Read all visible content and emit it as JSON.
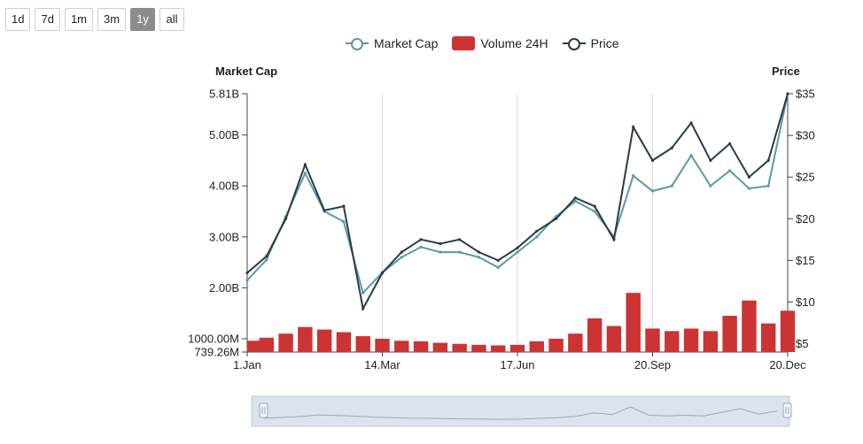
{
  "controls": {
    "ranges": [
      {
        "label": "1d",
        "active": false
      },
      {
        "label": "7d",
        "active": false
      },
      {
        "label": "1m",
        "active": false
      },
      {
        "label": "3m",
        "active": false
      },
      {
        "label": "1y",
        "active": true
      },
      {
        "label": "all",
        "active": false
      }
    ]
  },
  "legend": [
    {
      "name": "Market Cap",
      "kind": "line",
      "color": "#5b9aa0"
    },
    {
      "name": "Volume 24H",
      "kind": "bar",
      "color": "#cc3333"
    },
    {
      "name": "Price",
      "kind": "line",
      "color": "#2b3a4a"
    }
  ],
  "colors": {
    "market_cap": "#5b9aa0",
    "volume": "#cc3333",
    "price": "#2b3a4a",
    "grid": "#d8d8d8",
    "navigator_fill": "#dde3ec",
    "navigator_line": "#9aa7b8",
    "navigator_handle": "#9aa7b8"
  },
  "chart_data": {
    "type": "line",
    "left_axis_title": "Market Cap",
    "right_axis_title": "Price",
    "left_ticks": [
      "5.81B",
      "5.00B",
      "4.00B",
      "3.00B",
      "2.00B",
      "1000.00M",
      "739.26M"
    ],
    "right_ticks": [
      "$35",
      "$30",
      "$25",
      "$20",
      "$15",
      "$10",
      "$5"
    ],
    "x_ticks": [
      "1.Jan",
      "14.Mar",
      "17.Jun",
      "20.Sep",
      "20.Dec"
    ],
    "x_label": "",
    "y_left_range": [
      739.26,
      5810
    ],
    "y_left_unit": "M",
    "y_right_range": [
      4,
      35
    ],
    "grid": "vertical at x ticks",
    "x": [
      "1.Jan",
      "22.Jan",
      "12.Feb",
      "22.Feb",
      "5.Mar",
      "10.Mar",
      "14.Mar",
      "1.Apr",
      "15.Apr",
      "1.May",
      "15.May",
      "1.Jun",
      "17.Jun",
      "1.Jul",
      "15.Jul",
      "1.Aug",
      "15.Aug",
      "1.Sep",
      "10.Sep",
      "15.Sep",
      "20.Sep",
      "1.Oct",
      "15.Oct",
      "1.Nov",
      "15.Nov",
      "1.Dec",
      "10.Dec",
      "15.Dec",
      "20.Dec"
    ],
    "series": [
      {
        "name": "Market Cap",
        "axis": "left",
        "values": [
          2150,
          2550,
          3400,
          4250,
          3500,
          3300,
          1900,
          2300,
          2600,
          2800,
          2700,
          2700,
          2600,
          2400,
          2700,
          3000,
          3400,
          3700,
          3500,
          3000,
          4200,
          3900,
          4000,
          4600,
          4000,
          4300,
          3950,
          4000,
          5810
        ]
      },
      {
        "name": "Price",
        "axis": "right",
        "values": [
          13.5,
          15.5,
          20,
          26.5,
          21,
          21.5,
          9.2,
          13.5,
          16,
          17.5,
          17,
          17.5,
          16,
          15,
          16.5,
          18.5,
          20,
          22.5,
          21.5,
          17.5,
          31,
          27,
          28.5,
          31.5,
          27,
          29,
          25,
          27,
          35
        ]
      },
      {
        "name": "Volume 24H",
        "axis": "left",
        "kind": "bar",
        "values": [
          960,
          1020,
          1100,
          1230,
          1180,
          1130,
          1050,
          1000,
          960,
          950,
          920,
          900,
          880,
          870,
          880,
          950,
          1000,
          1100,
          1400,
          1250,
          1900,
          1200,
          1150,
          1200,
          1150,
          1450,
          1750,
          1300,
          1550
        ]
      }
    ]
  }
}
